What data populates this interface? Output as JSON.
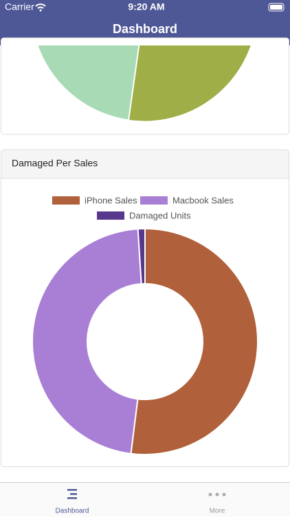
{
  "status_bar": {
    "carrier": "Carrier",
    "time": "9:20 AM"
  },
  "nav": {
    "title": "Dashboard"
  },
  "chart_data": {
    "type": "doughnut",
    "title": "Damaged Per Sales",
    "categories": [
      "iPhone Sales",
      "Macbook Sales",
      "Damaged Units"
    ],
    "values": [
      52,
      47,
      1
    ],
    "colors": [
      "#b0603a",
      "#a97fd5",
      "#58388d"
    ]
  },
  "tab_bar": {
    "items": [
      "Dashboard",
      "More"
    ]
  }
}
